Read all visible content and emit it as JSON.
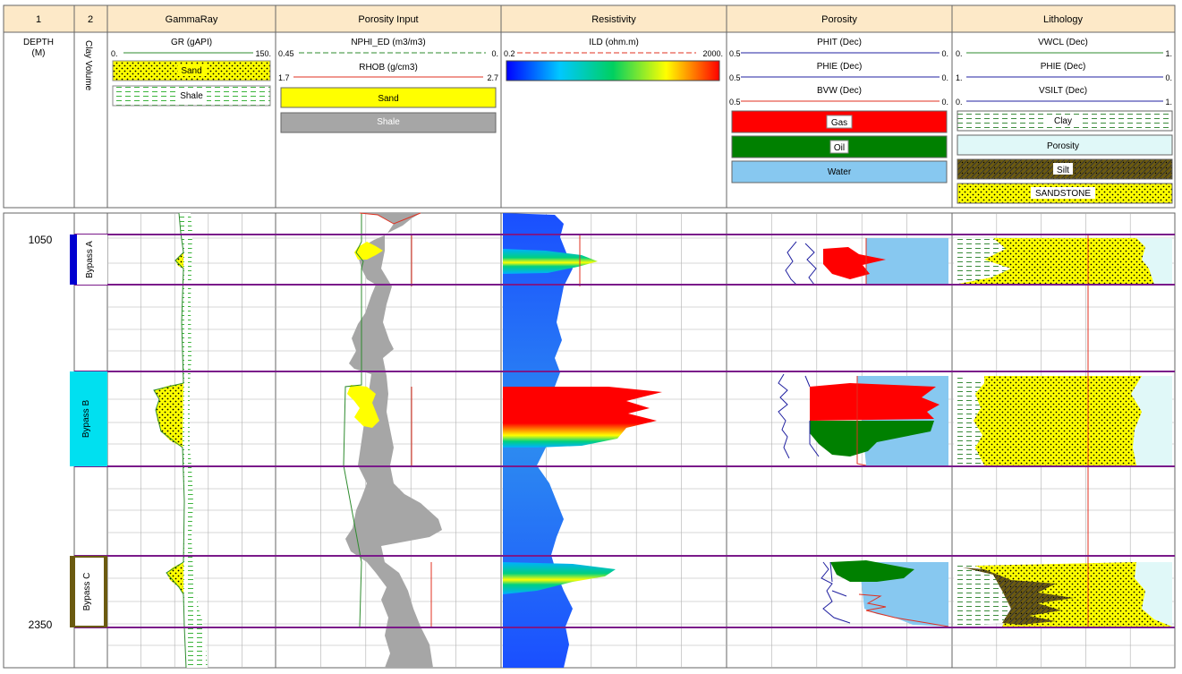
{
  "tracks": [
    {
      "number": "1",
      "title": ""
    },
    {
      "number": "2",
      "title": ""
    },
    {
      "number": "",
      "title": "GammaRay"
    },
    {
      "number": "",
      "title": "Porosity Input"
    },
    {
      "number": "",
      "title": "Resistivity"
    },
    {
      "number": "",
      "title": "Porosity"
    },
    {
      "number": "",
      "title": "Lithology"
    }
  ],
  "depth_header": {
    "title": "DEPTH",
    "unit": "(M)"
  },
  "clay_header": "Clay Volume",
  "gamma": {
    "curve": {
      "name": "GR (gAPI)",
      "left": "0.",
      "right": "150."
    },
    "fills": [
      {
        "label": "Sand",
        "color": "#ffff00"
      },
      {
        "label": "Shale",
        "color": "#ffffff"
      }
    ]
  },
  "porosity_input": {
    "curves": [
      {
        "name": "NPHI_ED (m3/m3)",
        "left": "0.45",
        "right": "0.",
        "color": "#2e8b2e"
      },
      {
        "name": "RHOB (g/cm3)",
        "left": "1.7",
        "right": "2.7",
        "color": "#e03020"
      }
    ],
    "fills": [
      {
        "label": "Sand",
        "color": "#ffff00"
      },
      {
        "label": "Shale",
        "color": "#a6a6a6"
      }
    ]
  },
  "resistivity": {
    "curve": {
      "name": "ILD (ohm.m)",
      "left": "0.2",
      "right": "2000.",
      "color": "#e03020"
    }
  },
  "porosity": {
    "curves": [
      {
        "name": "PHIT (Dec)",
        "left": "0.5",
        "right": "0.",
        "color": "#2020a0"
      },
      {
        "name": "PHIE (Dec)",
        "left": "0.5",
        "right": "0.",
        "color": "#2020a0"
      },
      {
        "name": "BVW (Dec)",
        "left": "0.5",
        "right": "0.",
        "color": "#e03020"
      }
    ],
    "fills": [
      {
        "label": "Gas",
        "color": "#ff0000"
      },
      {
        "label": "Oil",
        "color": "#008000"
      },
      {
        "label": "Water",
        "color": "#87c8f0"
      }
    ]
  },
  "lithology": {
    "curves": [
      {
        "name": "VWCL (Dec)",
        "left": "0.",
        "right": "1.",
        "color": "#2e8b2e"
      },
      {
        "name": "PHIE (Dec)",
        "left": "1.",
        "right": "0.",
        "color": "#2020a0"
      },
      {
        "name": "VSILT (Dec)",
        "left": "0.",
        "right": "1.",
        "color": "#2020a0"
      }
    ],
    "fills": [
      {
        "label": "Clay",
        "color": "#ffffff"
      },
      {
        "label": "Porosity",
        "color": "#e0f8f8"
      },
      {
        "label": "Silt",
        "color": "#6b5a10"
      },
      {
        "label": "SANDSTONE",
        "color": "#ffff00"
      }
    ]
  },
  "depth_labels": [
    "1050",
    "2350"
  ],
  "zones": [
    {
      "label": "Bypass A",
      "color": "#0000d0"
    },
    {
      "label": "Bypass B",
      "color": "#00e0f0"
    },
    {
      "label": "Bypass C",
      "color": "#6b5a10"
    }
  ],
  "colors": {
    "header_bg": "#fde9c8",
    "zone_line": "#7a1a8a",
    "grid": "#b0b0b0"
  },
  "chart_data": {
    "type": "well-log",
    "depth_unit": "M",
    "depth_range": [
      1050,
      2350
    ],
    "zones": [
      {
        "name": "Bypass A",
        "fluid": "Gas"
      },
      {
        "name": "Bypass B",
        "fluid": "Gas over Oil"
      },
      {
        "name": "Bypass C",
        "fluid": "Oil"
      }
    ],
    "series": [
      {
        "name": "GR (gAPI)",
        "range": [
          0,
          150
        ]
      },
      {
        "name": "NPHI_ED (m3/m3)",
        "range": [
          0.45,
          0
        ]
      },
      {
        "name": "RHOB (g/cm3)",
        "range": [
          1.7,
          2.7
        ]
      },
      {
        "name": "ILD (ohm.m)",
        "range": [
          0.2,
          2000
        ],
        "scale": "log"
      },
      {
        "name": "PHIT (Dec)",
        "range": [
          0.5,
          0
        ]
      },
      {
        "name": "PHIE (Dec)",
        "range": [
          0.5,
          0
        ]
      },
      {
        "name": "BVW (Dec)",
        "range": [
          0.5,
          0
        ]
      },
      {
        "name": "VWCL (Dec)",
        "range": [
          0,
          1
        ]
      },
      {
        "name": "VSILT (Dec)",
        "range": [
          0,
          1
        ]
      }
    ]
  }
}
